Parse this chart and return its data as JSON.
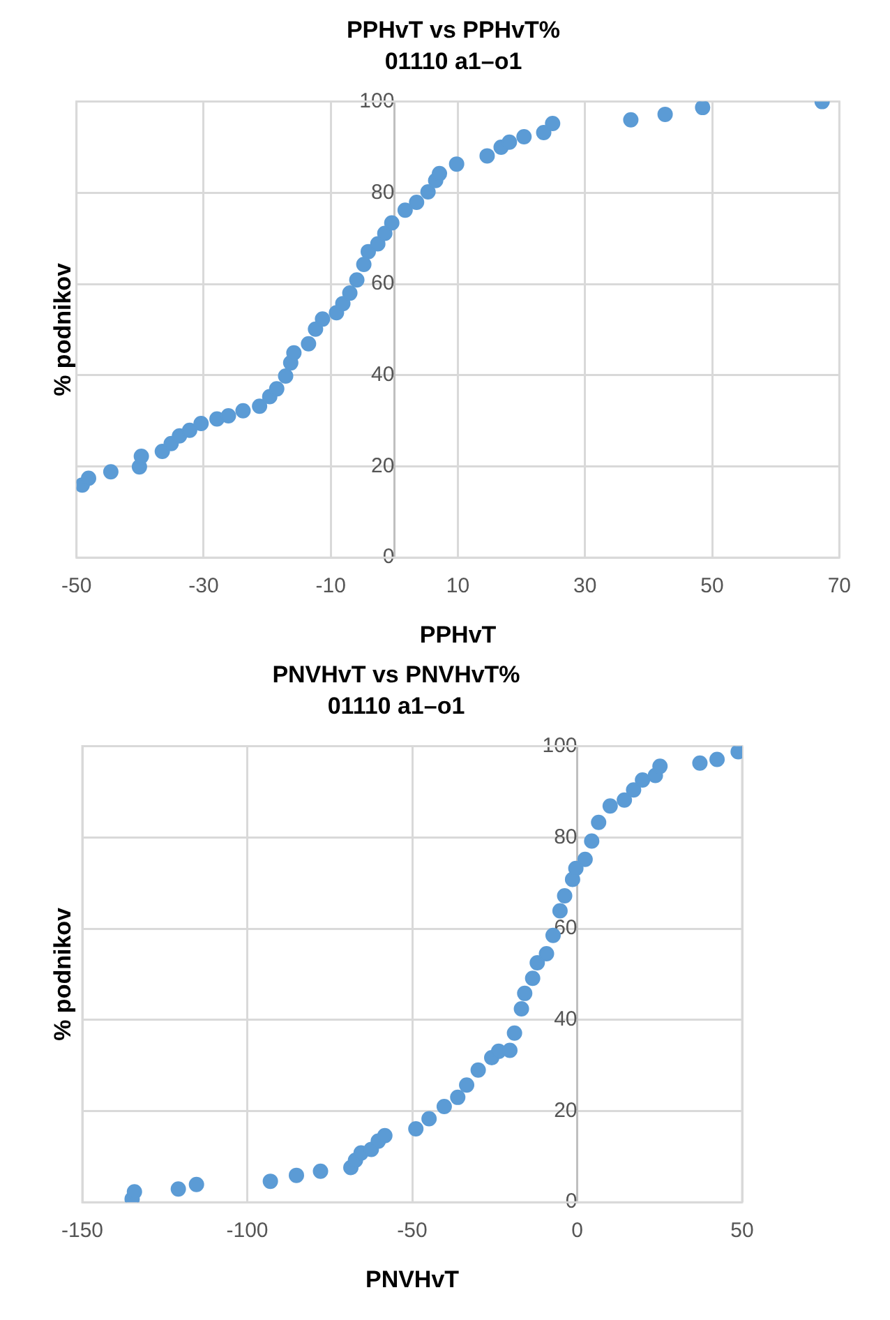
{
  "chart_data": [
    {
      "type": "scatter",
      "title": "PPHvT vs PPHvT%",
      "subtitle": "01110 a1–o1",
      "xlabel": "PPHvT",
      "ylabel": "% podnikov",
      "color": "#5b9bd5",
      "marker": "circle",
      "grid": true,
      "x": [
        -49.1,
        -48.1,
        -44.6,
        -40.1,
        -39.8,
        -36.5,
        -35.1,
        -33.8,
        -32.2,
        -30.4,
        -27.9,
        -26.1,
        -23.8,
        -21.2,
        -19.6,
        -18.5,
        -17.1,
        -16.3,
        -15.8,
        -13.5,
        -12.4,
        -11.3,
        -9.1,
        -8.1,
        -7.0,
        -5.9,
        -4.8,
        -4.1,
        -2.6,
        -1.5,
        -0.4,
        1.7,
        3.5,
        5.3,
        6.5,
        7.1,
        9.8,
        14.6,
        16.8,
        18.1,
        20.4,
        23.5,
        24.9,
        37.2,
        42.6,
        48.5,
        67.3
      ],
      "values": [
        15.9,
        17.4,
        18.8,
        19.9,
        22.2,
        23.3,
        25,
        26.7,
        27.9,
        29.4,
        30.4,
        31.1,
        32.2,
        33.2,
        35.3,
        37,
        39.8,
        42.7,
        44.9,
        46.9,
        50.1,
        52.3,
        53.7,
        55.7,
        58,
        60.9,
        64.3,
        67.1,
        68.8,
        71.1,
        73.4,
        76.2,
        77.9,
        80.2,
        82.7,
        84.2,
        86.3,
        88.1,
        90,
        91.1,
        92.3,
        93.2,
        95.2,
        96,
        97.2,
        98.7,
        100
      ],
      "xlim": [
        -50,
        70
      ],
      "xticks": [
        -50,
        -30,
        -10,
        10,
        30,
        50,
        70
      ],
      "ylim": [
        0,
        100
      ],
      "yticks": [
        0,
        20,
        40,
        60,
        80,
        100
      ]
    },
    {
      "type": "scatter",
      "title": "PNVHvT vs PNVHvT%",
      "subtitle": "01110 a1–o1",
      "xlabel": "PNVHvT",
      "ylabel": "% podnikov",
      "color": "#5b9bd5",
      "marker": "circle",
      "grid": true,
      "x": [
        -134.9,
        -134.2,
        -120.9,
        -115.4,
        -93.0,
        -85.1,
        -77.8,
        -68.6,
        -67.2,
        -65.5,
        -62.4,
        -60.3,
        -58.3,
        -48.9,
        -44.9,
        -40.3,
        -36.2,
        -33.5,
        -30.0,
        -25.9,
        -23.8,
        -20.4,
        -19.0,
        -16.9,
        -15.9,
        -13.5,
        -12.1,
        -9.3,
        -7.3,
        -5.2,
        -3.8,
        -1.4,
        -0.4,
        2.4,
        4.4,
        6.5,
        10.0,
        14.3,
        17.1,
        19.8,
        23.7,
        25.1,
        37.2,
        42.4,
        48.8
      ],
      "values": [
        0.7,
        2.3,
        2.9,
        3.9,
        4.6,
        5.9,
        6.8,
        7.6,
        9.2,
        10.8,
        11.6,
        13.4,
        14.6,
        16.1,
        18.3,
        21.0,
        23.0,
        25.7,
        29.0,
        31.7,
        33.1,
        33.3,
        37.1,
        42.4,
        45.8,
        49.1,
        52.5,
        54.5,
        58.5,
        63.9,
        67.2,
        70.8,
        73.2,
        75.2,
        79.2,
        83.3,
        86.9,
        88.2,
        90.4,
        92.6,
        93.6,
        95.6,
        96.3,
        97.1,
        98.8
      ],
      "xlim": [
        -150,
        50
      ],
      "xticks": [
        -150,
        -100,
        -50,
        0,
        50
      ],
      "ylim": [
        0,
        100
      ],
      "yticks": [
        0,
        20,
        40,
        60,
        80,
        100
      ]
    }
  ]
}
